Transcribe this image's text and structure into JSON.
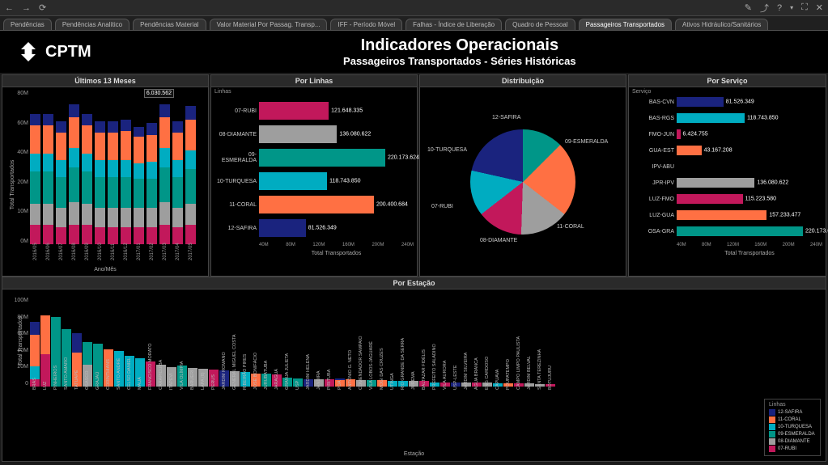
{
  "toolbar": {
    "back": "←",
    "fwd": "→",
    "refresh": "⟳",
    "edit": "✎",
    "share": "⤴",
    "help": "?",
    "fullscreen": "⛶",
    "close": "✕"
  },
  "tabs": [
    {
      "label": "Pendências",
      "active": false
    },
    {
      "label": "Pendências Analítico",
      "active": false
    },
    {
      "label": "Pendências Material",
      "active": false
    },
    {
      "label": "Valor Material Por Passag. Transp...",
      "active": false
    },
    {
      "label": "IFF - Período Móvel",
      "active": false
    },
    {
      "label": "Falhas - Índice de Liberação",
      "active": false
    },
    {
      "label": "Quadro de Pessoal",
      "active": false
    },
    {
      "label": "Passageiros Transportados",
      "active": true
    },
    {
      "label": "Ativos Hidráulico/Sanitários",
      "active": false
    }
  ],
  "header": {
    "logo_text": "CPTM",
    "title1": "Indicadores Operacionais",
    "title2": "Passageiros Transportados - Séries Históricas"
  },
  "colors": {
    "07-RUBI": "#c2185b",
    "08-DIAMANTE": "#9e9e9e",
    "09-ESMERALDA": "#009688",
    "10-TURQUESA": "#00acc1",
    "11-CORAL": "#ff7043",
    "12-SAFIRA": "#1a237e",
    "grid": "#333333"
  },
  "months_chart": {
    "title": "Últimos 13 Meses",
    "y_label": "Total Transportados",
    "x_label": "Ano/Mês",
    "y_ticks": [
      "0M",
      "10M",
      "20M",
      "40M",
      "60M",
      "80M"
    ],
    "y_max": 80,
    "callout": "6.030.562",
    "data": [
      {
        "x": "2016/05",
        "segs": {
          "07-RUBI": 10,
          "08-DIAMANTE": 11,
          "09-ESMERALDA": 17,
          "10-TURQUESA": 9,
          "11-CORAL": 15,
          "12-SAFIRA": 6
        }
      },
      {
        "x": "2016/06",
        "segs": {
          "07-RUBI": 10,
          "08-DIAMANTE": 11,
          "09-ESMERALDA": 17,
          "10-TURQUESA": 9,
          "11-CORAL": 15,
          "12-SAFIRA": 6
        }
      },
      {
        "x": "2016/07",
        "segs": {
          "07-RUBI": 9,
          "08-DIAMANTE": 10,
          "09-ESMERALDA": 16,
          "10-TURQUESA": 9,
          "11-CORAL": 14,
          "12-SAFIRA": 6
        }
      },
      {
        "x": "2016/08",
        "segs": {
          "07-RUBI": 10,
          "08-DIAMANTE": 12,
          "09-ESMERALDA": 18,
          "10-TURQUESA": 10,
          "11-CORAL": 16,
          "12-SAFIRA": 7
        }
      },
      {
        "x": "2016/09",
        "segs": {
          "07-RUBI": 10,
          "08-DIAMANTE": 11,
          "09-ESMERALDA": 17,
          "10-TURQUESA": 9,
          "11-CORAL": 15,
          "12-SAFIRA": 6
        }
      },
      {
        "x": "2016/10",
        "segs": {
          "07-RUBI": 9,
          "08-DIAMANTE": 10,
          "09-ESMERALDA": 16,
          "10-TURQUESA": 9,
          "11-CORAL": 14,
          "12-SAFIRA": 6
        }
      },
      {
        "x": "2016/11",
        "segs": {
          "07-RUBI": 9,
          "08-DIAMANTE": 10,
          "09-ESMERALDA": 16,
          "10-TURQUESA": 9,
          "11-CORAL": 14,
          "12-SAFIRA": 6
        }
      },
      {
        "x": "2016/12",
        "segs": {
          "07-RUBI": 9,
          "08-DIAMANTE": 10,
          "09-ESMERALDA": 16,
          "10-TURQUESA": 9,
          "11-CORAL": 15,
          "12-SAFIRA": 6
        }
      },
      {
        "x": "2017/01",
        "segs": {
          "07-RUBI": 9,
          "08-DIAMANTE": 10,
          "09-ESMERALDA": 15,
          "10-TURQUESA": 8,
          "11-CORAL": 14,
          "12-SAFIRA": 5
        }
      },
      {
        "x": "2017/02",
        "segs": {
          "07-RUBI": 9,
          "08-DIAMANTE": 10,
          "09-ESMERALDA": 15,
          "10-TURQUESA": 9,
          "11-CORAL": 14,
          "12-SAFIRA": 6
        }
      },
      {
        "x": "2017/03",
        "segs": {
          "07-RUBI": 10,
          "08-DIAMANTE": 12,
          "09-ESMERALDA": 18,
          "10-TURQUESA": 10,
          "11-CORAL": 16,
          "12-SAFIRA": 7
        }
      },
      {
        "x": "2017/04",
        "segs": {
          "07-RUBI": 9,
          "08-DIAMANTE": 10,
          "09-ESMERALDA": 16,
          "10-TURQUESA": 9,
          "11-CORAL": 14,
          "12-SAFIRA": 6
        }
      },
      {
        "x": "2017/05",
        "segs": {
          "07-RUBI": 10,
          "08-DIAMANTE": 11,
          "09-ESMERALDA": 18,
          "10-TURQUESA": 10,
          "11-CORAL": 16,
          "12-SAFIRA": 7
        }
      }
    ]
  },
  "lines_chart": {
    "title": "Por Linhas",
    "y_title": "Linhas",
    "x_label": "Total Transportados",
    "x_max": 240,
    "x_ticks": [
      "40M",
      "80M",
      "120M",
      "160M",
      "200M",
      "240M"
    ],
    "data": [
      {
        "label": "07-RUBI",
        "value": 121648335,
        "text": "121.648.335",
        "color": "07-RUBI"
      },
      {
        "label": "08-DIAMANTE",
        "value": 136080622,
        "text": "136.080.622",
        "color": "08-DIAMANTE"
      },
      {
        "label": "09-ESMERALDA",
        "value": 220173624,
        "text": "220.173.624",
        "color": "09-ESMERALDA"
      },
      {
        "label": "10-TURQUESA",
        "value": 118743850,
        "text": "118.743.850",
        "color": "10-TURQUESA"
      },
      {
        "label": "11-CORAL",
        "value": 200400684,
        "text": "200.400.684",
        "color": "11-CORAL"
      },
      {
        "label": "12-SAFIRA",
        "value": 81526349,
        "text": "81.526.349",
        "color": "12-SAFIRA"
      }
    ]
  },
  "pie_chart": {
    "title": "Distribuição",
    "data": [
      {
        "label": "09-ESMERALDA",
        "value": 25,
        "color": "09-ESMERALDA"
      },
      {
        "label": "11-CORAL",
        "value": 23,
        "color": "11-CORAL"
      },
      {
        "label": "08-DIAMANTE",
        "value": 15,
        "color": "08-DIAMANTE"
      },
      {
        "label": "07-RUBI",
        "value": 14,
        "color": "07-RUBI"
      },
      {
        "label": "10-TURQUESA",
        "value": 14,
        "color": "10-TURQUESA"
      },
      {
        "label": "12-SAFIRA",
        "value": 9,
        "color": "12-SAFIRA"
      }
    ]
  },
  "service_chart": {
    "title": "Por Serviço",
    "y_title": "Serviço",
    "x_label": "Total Transportados",
    "x_max": 240,
    "x_ticks": [
      "40M",
      "80M",
      "120M",
      "160M",
      "200M",
      "240M"
    ],
    "data": [
      {
        "label": "BAS-CVN",
        "value": 81526349,
        "text": "81.526.349",
        "color": "12-SAFIRA"
      },
      {
        "label": "BAS-RGS",
        "value": 118743850,
        "text": "118.743.850",
        "color": "10-TURQUESA"
      },
      {
        "label": "FMO-JUN",
        "value": 6424755,
        "text": "6.424.755",
        "color": "07-RUBI"
      },
      {
        "label": "GUA-EST",
        "value": 43167208,
        "text": "43.167.208",
        "color": "11-CORAL"
      },
      {
        "label": "IPV-ABU",
        "value": 0,
        "text": "",
        "color": "08-DIAMANTE"
      },
      {
        "label": "JPR-IPV",
        "value": 136080622,
        "text": "136.080.622",
        "color": "08-DIAMANTE"
      },
      {
        "label": "LUZ-FMO",
        "value": 115223580,
        "text": "115.223.580",
        "color": "07-RUBI"
      },
      {
        "label": "LUZ-GUA",
        "value": 157233477,
        "text": "157.233.477",
        "color": "11-CORAL"
      },
      {
        "label": "OSA-GRA",
        "value": 220173624,
        "text": "220.173.624",
        "color": "09-ESMERALDA"
      }
    ]
  },
  "station_chart": {
    "title": "Por Estação",
    "y_label": "Total Transportados",
    "x_label": "Estação",
    "y_max": 100,
    "y_ticks": [
      "0",
      "20M",
      "40M",
      "60M",
      "80M",
      "100M"
    ],
    "data": [
      {
        "x": "BRÁS",
        "segs": {
          "12-SAFIRA": 15,
          "10-TURQUESA": 15,
          "11-CORAL": 35,
          "07-RUBI": 8
        }
      },
      {
        "x": "LUZ",
        "segs": {
          "11-CORAL": 44,
          "07-RUBI": 36
        }
      },
      {
        "x": "PINHEIROS",
        "segs": {
          "09-ESMERALDA": 78
        }
      },
      {
        "x": "SANTO AMARO",
        "segs": {
          "09-ESMERALDA": 65
        }
      },
      {
        "x": "TATUAPÉ",
        "segs": {
          "12-SAFIRA": 22,
          "11-CORAL": 38
        }
      },
      {
        "x": "OSASCO",
        "segs": {
          "09-ESMERALDA": 25,
          "08-DIAMANTE": 25
        }
      },
      {
        "x": "GRAJAÚ",
        "segs": {
          "09-ESMERALDA": 48
        }
      },
      {
        "x": "CORINTHIANS",
        "segs": {
          "11-CORAL": 42
        }
      },
      {
        "x": "SANTO ANDRÉ",
        "segs": {
          "10-TURQUESA": 40
        }
      },
      {
        "x": "CELSO DANIEL",
        "segs": {
          "10-TURQUESA": 35
        }
      },
      {
        "x": "MAUÁ",
        "segs": {
          "10-TURQUESA": 32
        }
      },
      {
        "x": "FRANCISCO MORATO",
        "segs": {
          "07-RUBI": 28
        }
      },
      {
        "x": "CARAPICUÍBA",
        "segs": {
          "08-DIAMANTE": 25
        }
      },
      {
        "x": "ITAPEVI",
        "segs": {
          "08-DIAMANTE": 22
        }
      },
      {
        "x": "VILA OLÍMPIA",
        "segs": {
          "09-ESMERALDA": 24
        }
      },
      {
        "x": "BARUERI",
        "segs": {
          "08-DIAMANTE": 21
        }
      },
      {
        "x": "LAPA (8)",
        "segs": {
          "08-DIAMANTE": 20
        }
      },
      {
        "x": "PERUS",
        "segs": {
          "07-RUBI": 19
        }
      },
      {
        "x": "JARDIM ROMANO",
        "segs": {
          "12-SAFIRA": 18
        }
      },
      {
        "x": "GENERAL MIGUEL COSTA",
        "segs": {
          "08-DIAMANTE": 17
        }
      },
      {
        "x": "RIBEIRÃO PIRES",
        "segs": {
          "10-TURQUESA": 16
        }
      },
      {
        "x": "JOSÉ BONIFÁCIO",
        "segs": {
          "11-CORAL": 15
        }
      },
      {
        "x": "JURUBATUBA",
        "segs": {
          "09-ESMERALDA": 15
        }
      },
      {
        "x": "JARAGUÁ",
        "segs": {
          "07-RUBI": 14
        }
      },
      {
        "x": "GRANJA JULIETA",
        "segs": {
          "09-ESMERALDA": 10
        }
      },
      {
        "x": "USP",
        "segs": {
          "09-ESMERALDA": 9
        }
      },
      {
        "x": "JARDIM HELENA",
        "segs": {
          "12-SAFIRA": 8
        }
      },
      {
        "x": "JANDIRA",
        "segs": {
          "08-DIAMANTE": 8
        }
      },
      {
        "x": "PIRITUBA",
        "segs": {
          "07-RUBI": 8
        }
      },
      {
        "x": "POÁ",
        "segs": {
          "11-CORAL": 7,
          "12-SAFIRA": 2
        }
      },
      {
        "x": "ANTÔNIO G. NETO",
        "segs": {
          "11-CORAL": 8
        }
      },
      {
        "x": "COMENDADOR SAMPAIO",
        "segs": {
          "08-DIAMANTE": 7
        }
      },
      {
        "x": "VILA LOBOS-JAGUARÉ",
        "segs": {
          "09-ESMERALDA": 7
        }
      },
      {
        "x": "MOGI DAS CRUZES",
        "segs": {
          "11-CORAL": 7
        }
      },
      {
        "x": "UTINGA",
        "segs": {
          "10-TURQUESA": 6
        }
      },
      {
        "x": "RIO GRANDE DA SERRA",
        "segs": {
          "10-TURQUESA": 6
        }
      },
      {
        "x": "JUREMA",
        "segs": {
          "08-DIAMANTE": 6
        }
      },
      {
        "x": "BALTAZAR FIDÉLIS",
        "segs": {
          "07-RUBI": 6
        }
      },
      {
        "x": "PREFEITO SALADINO",
        "segs": {
          "10-TURQUESA": 5
        }
      },
      {
        "x": "VILA AURORA",
        "segs": {
          "07-RUBI": 5
        }
      },
      {
        "x": "USP-LESTE",
        "segs": {
          "12-SAFIRA": 5
        }
      },
      {
        "x": "JARDIM SILVEIRA",
        "segs": {
          "08-DIAMANTE": 5
        }
      },
      {
        "x": "ÁGUA BRANCA",
        "segs": {
          "07-RUBI": 5
        }
      },
      {
        "x": "ENG CARDOSO",
        "segs": {
          "08-DIAMANTE": 5
        }
      },
      {
        "x": "CAPUAVA",
        "segs": {
          "10-TURQUESA": 4
        }
      },
      {
        "x": "POUPATEMPO",
        "segs": {
          "11-CORAL": 4
        }
      },
      {
        "x": "CAMPO LIMPO PAULISTA",
        "segs": {
          "07-RUBI": 4
        }
      },
      {
        "x": "JARDIM BELVAL",
        "segs": {
          "08-DIAMANTE": 4
        }
      },
      {
        "x": "SANTA TEREZINHA",
        "segs": {
          "08-DIAMANTE": 3
        }
      },
      {
        "x": "BOTUJURU",
        "segs": {
          "07-RUBI": 3
        }
      }
    ]
  },
  "legend": {
    "title": "Linhas",
    "items": [
      "12-SAFIRA",
      "11-CORAL",
      "10-TURQUESA",
      "09-ESMERALDA",
      "08-DIAMANTE",
      "07-RUBI"
    ]
  }
}
